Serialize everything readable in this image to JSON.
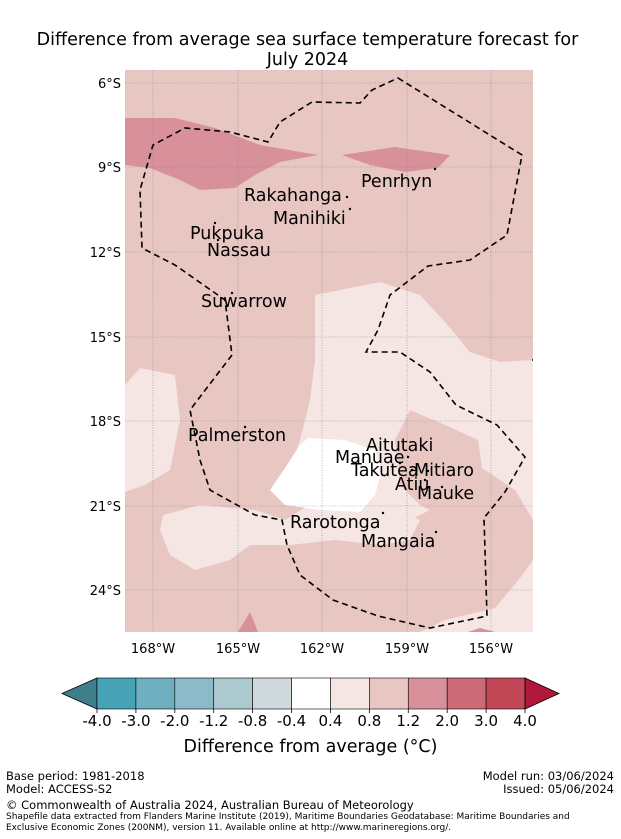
{
  "title": {
    "line1": "Difference from average sea surface temperature forecast for",
    "line2": "July 2024"
  },
  "map": {
    "lat_ticks": [
      "6°S",
      "9°S",
      "12°S",
      "15°S",
      "18°S",
      "21°S",
      "24°S"
    ],
    "lon_ticks": [
      "168°W",
      "165°W",
      "162°W",
      "159°W",
      "156°W"
    ],
    "islands": [
      "Penrhyn",
      "Rakahanga",
      "Manihiki",
      "Pukpuka",
      "Nassau",
      "Suwarrow",
      "Palmerston",
      "Aitutaki",
      "Manuae",
      "Takutea",
      "Mitiaro",
      "Atiu",
      "Mauke",
      "Rarotonga",
      "Mangaia"
    ]
  },
  "colorbar": {
    "ticks": [
      "-4.0",
      "-3.0",
      "-2.0",
      "-1.2",
      "-0.8",
      "-0.4",
      "0.4",
      "0.8",
      "1.2",
      "2.0",
      "3.0",
      "4.0"
    ],
    "colors": [
      "#3e7f8c",
      "#47a3b5",
      "#6eb0c0",
      "#8cbac8",
      "#abc9cf",
      "#cfd8da",
      "#ffffff",
      "#f5e5e3",
      "#e8c6c1",
      "#d8919a",
      "#cd6a77",
      "#c24857",
      "#b0183a"
    ],
    "label": "Difference from average (°C)"
  },
  "footer": {
    "base_period": "Base period: 1981-2018",
    "model": "Model: ACCESS-S2",
    "model_run": "Model run: 03/06/2024",
    "issued": "Issued: 05/06/2024",
    "copyright": "© Commonwealth of Australia 2024, Australian Bureau of Meteorology",
    "shapefile": "Shapefile data extracted from Flanders Marine Institute (2019), Maritime Boundaries Geodatabase: Maritime Boundaries and Exclusive Economic Zones (200NM), version 11. Available online at http://www.marineregions.org/."
  }
}
